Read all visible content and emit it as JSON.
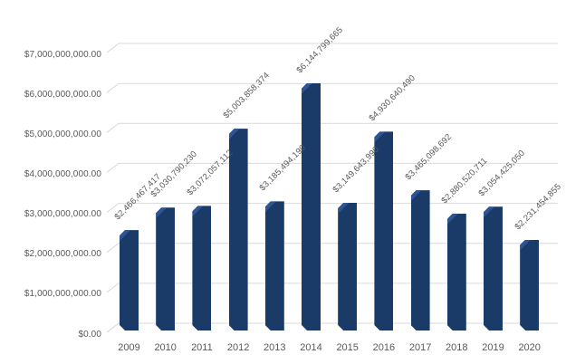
{
  "chart_data": {
    "type": "bar",
    "title": "",
    "xlabel": "",
    "ylabel": "",
    "categories": [
      "2009",
      "2010",
      "2011",
      "2012",
      "2013",
      "2014",
      "2015",
      "2016",
      "2017",
      "2018",
      "2019",
      "2020"
    ],
    "values": [
      2466467417,
      3030790230,
      3072057112,
      5003858374,
      3185494190,
      6144799665,
      3149643990,
      4930640490,
      3465098692,
      2880520711,
      3054425050,
      2231454855
    ],
    "data_labels": [
      "$2,466,467,417",
      "$3,030,790,230",
      "$3,072,057,112",
      "$5,003,858,374",
      "$3,185,494,190",
      "$6,144,799,665",
      "$3,149,643,990",
      "$4,930,640,490",
      "$3,465,098,692",
      "$2,880,520,711",
      "$3,054,425,050",
      "$2,231,454,855"
    ],
    "ylim": [
      0,
      7000000000
    ],
    "y_tick_step": 1000000000,
    "y_tick_labels": [
      "$0.00",
      "$1,000,000,000.00",
      "$2,000,000,000.00",
      "$3,000,000,000.00",
      "$4,000,000,000.00",
      "$5,000,000,000.00",
      "$6,000,000,000.00",
      "$7,000,000,000.00"
    ],
    "grid": true,
    "legend": false,
    "data_label_rotation_deg": -45,
    "style_3d": true,
    "colors": {
      "bar": "#1a3a68",
      "bar_bevel": "#2e5494",
      "gridline": "#d9d9d9",
      "text": "#595959",
      "background": "#ffffff"
    }
  }
}
